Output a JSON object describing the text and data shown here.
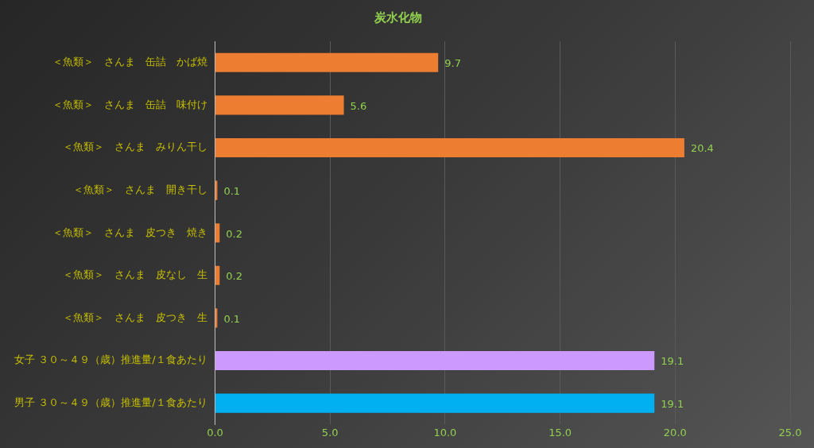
{
  "chart_data": {
    "type": "bar",
    "orientation": "horizontal",
    "title": "炭水化物",
    "categories": [
      "＜魚類＞　さんま　缶詰　かば焼",
      "＜魚類＞　さんま　缶詰　味付け",
      "＜魚類＞　さんま　みりん干し",
      "＜魚類＞　さんま　開き干し",
      "＜魚類＞　さんま　皮つき　焼き",
      "＜魚類＞　さんま　皮なし　生",
      "＜魚類＞　さんま　皮つき　生",
      "女子 ３０～４９（歳）推進量/１食あたり",
      "男子 ３０～４９（歳）推進量/１食あたり"
    ],
    "values": [
      9.7,
      5.6,
      20.4,
      0.1,
      0.2,
      0.2,
      0.1,
      19.1,
      19.1
    ],
    "colors": [
      "#ed7d31",
      "#ed7d31",
      "#ed7d31",
      "#ed7d31",
      "#ed7d31",
      "#ed7d31",
      "#ed7d31",
      "#cc99ff",
      "#00b0f0"
    ],
    "xlim": [
      0,
      25
    ],
    "xticks": [
      {
        "value": 0,
        "label": "0.0"
      },
      {
        "value": 5,
        "label": "5.0"
      },
      {
        "value": 10,
        "label": "10.0"
      },
      {
        "value": 15,
        "label": "15.0"
      },
      {
        "value": 20,
        "label": "20.0"
      },
      {
        "value": 25,
        "label": "25.0"
      }
    ],
    "grid": "x",
    "data_labels": true
  }
}
